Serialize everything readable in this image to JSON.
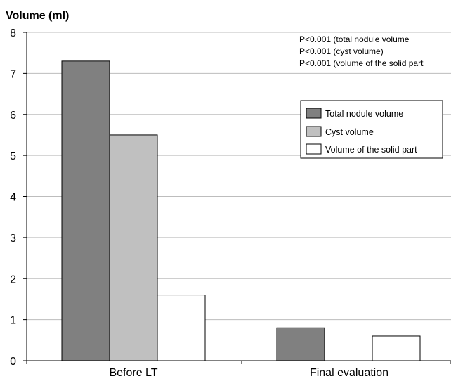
{
  "chart_data": {
    "type": "bar",
    "ylabel": "Volume (ml)",
    "ylim": [
      0,
      8
    ],
    "yticks": [
      0,
      1,
      2,
      3,
      4,
      5,
      6,
      7,
      8
    ],
    "categories": [
      "Before LT",
      "Final evaluation"
    ],
    "series": [
      {
        "name": "Total nodule volume",
        "values": [
          7.3,
          0.8
        ],
        "color": "#808080"
      },
      {
        "name": "Cyst volume",
        "values": [
          5.5,
          null
        ],
        "color": "#c0c0c0"
      },
      {
        "name": "Volume of the solid part",
        "values": [
          1.6,
          0.6
        ],
        "color": "#ffffff"
      }
    ],
    "annotations": [
      "P<0.001 (total nodule volume",
      "P<0.001 (cyst volume)",
      "P<0.001 (volume of the solid part"
    ],
    "legend_position": "right",
    "grid": true
  }
}
